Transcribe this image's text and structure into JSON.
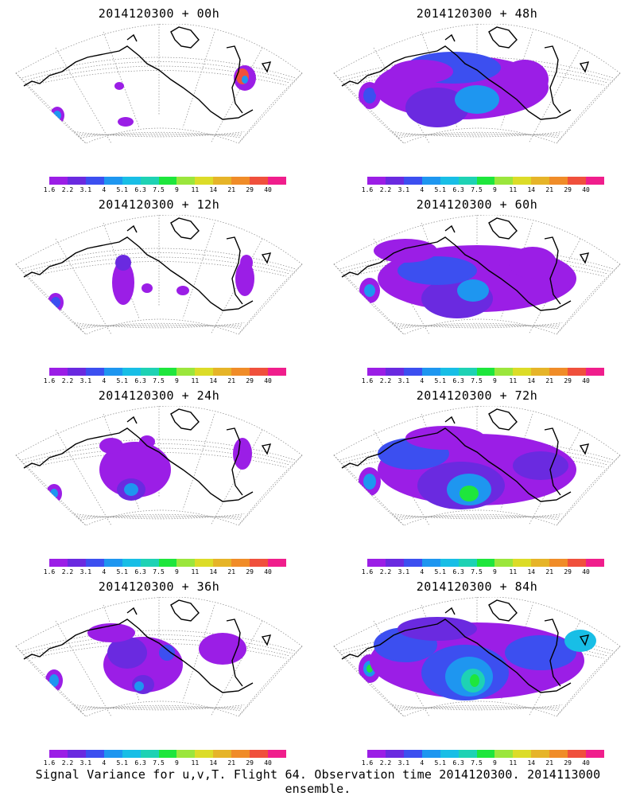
{
  "panels": [
    {
      "title": "2014120300 + 00h"
    },
    {
      "title": "2014120300 + 48h"
    },
    {
      "title": "2014120300 + 12h"
    },
    {
      "title": "2014120300 + 60h"
    },
    {
      "title": "2014120300 + 24h"
    },
    {
      "title": "2014120300 + 72h"
    },
    {
      "title": "2014120300 + 36h"
    },
    {
      "title": "2014120300 + 84h"
    }
  ],
  "colorbar": {
    "labels": [
      "1.6",
      "2.2",
      "3.1",
      "4",
      "5.1",
      "6.3",
      "7.5",
      "9",
      "11",
      "14",
      "21",
      "29",
      "40"
    ],
    "colors": [
      "#9b1ee6",
      "#6a2ae0",
      "#3c4ff0",
      "#1e96f0",
      "#18bee6",
      "#1ed2b4",
      "#1ee63c",
      "#9be63c",
      "#dcdc28",
      "#e6b428",
      "#f08c28",
      "#f0503c",
      "#f01e8c"
    ]
  },
  "footer": "Signal Variance for u,v,T. Flight 64. Observation time 2014120300. 2014113000 ensemble."
}
